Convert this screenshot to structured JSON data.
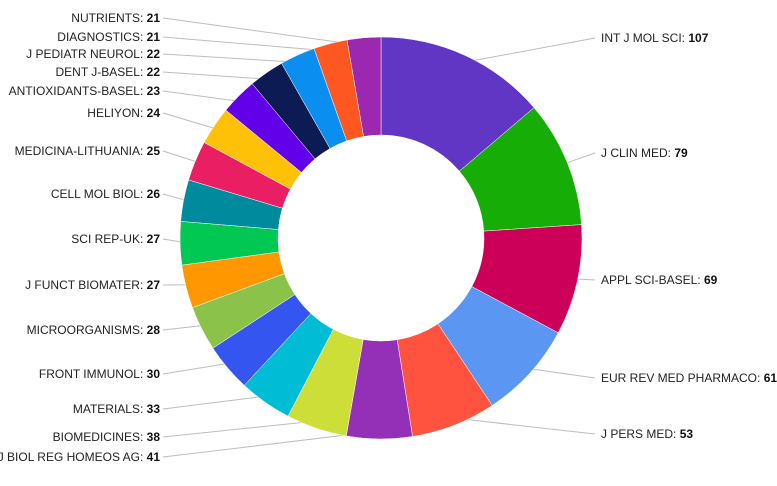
{
  "chart_data": {
    "type": "pie",
    "variant": "donut",
    "title": "",
    "slices": [
      {
        "label": "INT J MOL SCI",
        "value": 107,
        "color": "#6236c4"
      },
      {
        "label": "J CLIN MED",
        "value": 79,
        "color": "#17ad07"
      },
      {
        "label": "APPL SCI-BASEL",
        "value": 69,
        "color": "#cc0058"
      },
      {
        "label": "EUR REV MED PHARMACO",
        "value": 61,
        "color": "#5b96f2"
      },
      {
        "label": "J PERS MED",
        "value": 53,
        "color": "#ff5340"
      },
      {
        "label": "J BIOL REG HOMEOS AG",
        "value": 41,
        "color": "#9430b8"
      },
      {
        "label": "BIOMEDICINES",
        "value": 38,
        "color": "#cede39"
      },
      {
        "label": "MATERIALS",
        "value": 33,
        "color": "#00bcd4"
      },
      {
        "label": "FRONT IMMUNOL",
        "value": 30,
        "color": "#3455f0"
      },
      {
        "label": "MICROORGANISMS",
        "value": 28,
        "color": "#8bc34a"
      },
      {
        "label": "J FUNCT BIOMATER",
        "value": 27,
        "color": "#ff9800"
      },
      {
        "label": "SCI REP-UK",
        "value": 27,
        "color": "#00c853"
      },
      {
        "label": "CELL MOL BIOL",
        "value": 26,
        "color": "#008a9e"
      },
      {
        "label": "MEDICINA-LITHUANIA",
        "value": 25,
        "color": "#e91e63"
      },
      {
        "label": "HELIYON",
        "value": 24,
        "color": "#ffc107"
      },
      {
        "label": "ANTIOXIDANTS-BASEL",
        "value": 23,
        "color": "#6200ea"
      },
      {
        "label": "DENT J-BASEL",
        "value": 22,
        "color": "#0d1b54"
      },
      {
        "label": "J PEDIATR NEUROL",
        "value": 22,
        "color": "#0a8ef0"
      },
      {
        "label": "DIAGNOSTICS",
        "value": 21,
        "color": "#ff5722"
      },
      {
        "label": "NUTRIENTS",
        "value": 21,
        "color": "#9c27b0"
      }
    ]
  }
}
